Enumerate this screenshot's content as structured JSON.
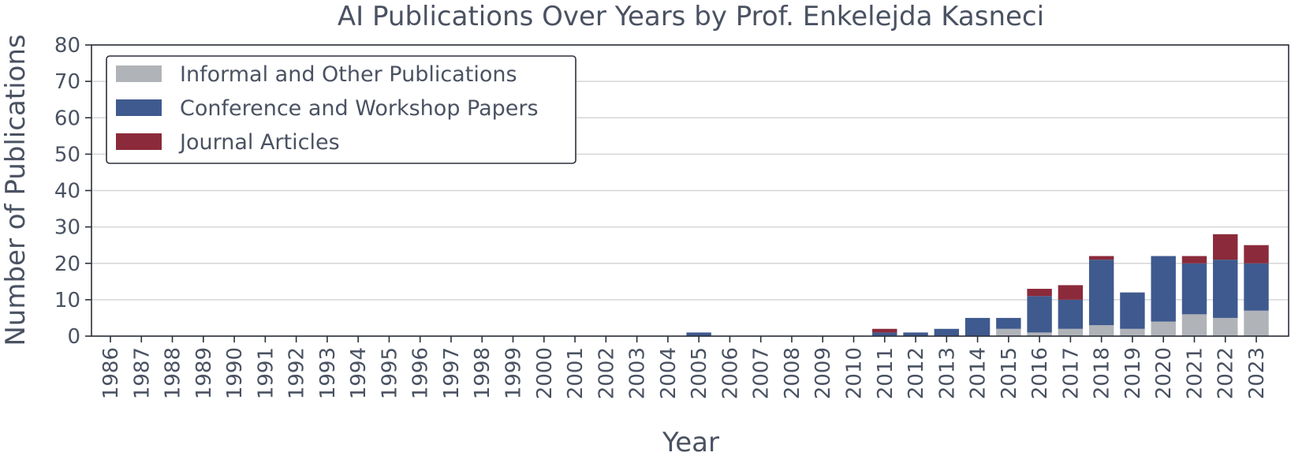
{
  "chart_data": {
    "type": "bar",
    "stacked": true,
    "title": "AI Publications Over Years by Prof. Enkelejda Kasneci",
    "xlabel": "Year",
    "ylabel": "Number of Publications",
    "ylim": [
      0,
      80
    ],
    "yticks": [
      "0",
      "10",
      "20",
      "30",
      "40",
      "50",
      "60",
      "70",
      "80"
    ],
    "grid": "horizontal",
    "legend_position": "top-left",
    "categories": [
      "1986",
      "1987",
      "1988",
      "1989",
      "1990",
      "1991",
      "1992",
      "1993",
      "1994",
      "1995",
      "1996",
      "1997",
      "1998",
      "1999",
      "2000",
      "2001",
      "2002",
      "2003",
      "2004",
      "2005",
      "2006",
      "2007",
      "2008",
      "2009",
      "2010",
      "2011",
      "2012",
      "2013",
      "2014",
      "2015",
      "2016",
      "2017",
      "2018",
      "2019",
      "2020",
      "2021",
      "2022",
      "2023"
    ],
    "series": [
      {
        "name": "Informal and Other Publications",
        "color": "#b0b3b8",
        "values": [
          0,
          0,
          0,
          0,
          0,
          0,
          0,
          0,
          0,
          0,
          0,
          0,
          0,
          0,
          0,
          0,
          0,
          0,
          0,
          0,
          0,
          0,
          0,
          0,
          0,
          0,
          0,
          0,
          0,
          2,
          1,
          2,
          3,
          2,
          4,
          6,
          5,
          7
        ]
      },
      {
        "name": "Conference and Workshop Papers",
        "color": "#3f5a8e",
        "values": [
          0,
          0,
          0,
          0,
          0,
          0,
          0,
          0,
          0,
          0,
          0,
          0,
          0,
          0,
          0,
          0,
          0,
          0,
          0,
          1,
          0,
          0,
          0,
          0,
          0,
          1,
          1,
          2,
          5,
          3,
          10,
          8,
          18,
          10,
          18,
          14,
          16,
          13
        ]
      },
      {
        "name": "Journal Articles",
        "color": "#8b2a3a",
        "values": [
          0,
          0,
          0,
          0,
          0,
          0,
          0,
          0,
          0,
          0,
          0,
          0,
          0,
          0,
          0,
          0,
          0,
          0,
          0,
          0,
          0,
          0,
          0,
          0,
          0,
          1,
          0,
          0,
          0,
          0,
          2,
          4,
          1,
          0,
          0,
          2,
          7,
          5
        ]
      }
    ]
  }
}
